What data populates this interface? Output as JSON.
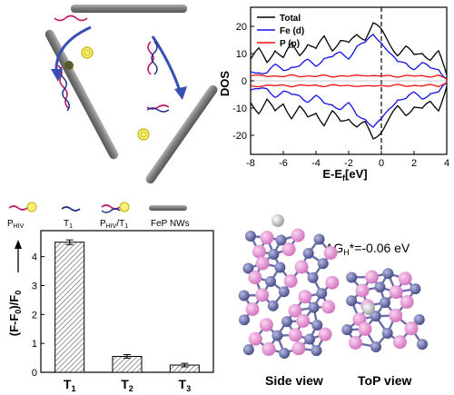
{
  "schematic": {
    "legend": {
      "probe": "P",
      "probe_sub": "HIV",
      "target": "T",
      "target_sub": "1",
      "hybrid": "P",
      "hybrid_sub": "HIV",
      "hybrid_slash": "/T",
      "hybrid_sub2": "1",
      "nanowire": "FeP NWs"
    }
  },
  "colors": {
    "total": "#000000",
    "fe_d": "#1010ee",
    "p_p": "#ee1010",
    "rod": "#8a8a8a",
    "fe_atom": "#7b7fb8",
    "p_atom": "#ec9ad8",
    "h_atom": "#e8e8e8"
  },
  "chart_data": [
    {
      "type": "line",
      "ylabel": "DOS",
      "xlabel": "E-E",
      "xlabel_sub": "f",
      "xlabel_unit": "[eV]",
      "xlim": [
        -8,
        4
      ],
      "ylim": [
        -27,
        27
      ],
      "xticks": [
        "-8",
        "-6",
        "-4",
        "-2",
        "0",
        "2",
        "4"
      ],
      "yticks": [
        "20",
        "10",
        "0",
        "-10",
        "-20"
      ],
      "legend_position": "top-left",
      "dashed_vertical_at": 0,
      "x": [
        -8,
        -7.5,
        -7,
        -6.5,
        -6,
        -5.5,
        -5,
        -4.5,
        -4,
        -3.5,
        -3,
        -2.5,
        -2,
        -1.5,
        -1,
        -0.5,
        0,
        0.5,
        1,
        1.5,
        2,
        2.5,
        3,
        3.5,
        4
      ],
      "series": [
        {
          "name": "Total",
          "color": "#000000",
          "values": [
            8,
            11,
            7,
            12,
            8,
            13,
            10,
            14,
            11,
            16,
            12,
            15,
            13,
            17,
            16,
            21,
            18,
            14,
            10,
            12,
            9,
            11,
            8,
            10,
            2
          ]
        },
        {
          "name": "Fe (d)",
          "color": "#1010ee",
          "values": [
            3,
            4,
            3,
            5,
            4,
            6,
            5,
            7,
            6,
            9,
            8,
            10,
            9,
            13,
            13,
            17,
            15,
            10,
            6,
            7,
            5,
            6,
            4,
            5,
            1
          ]
        },
        {
          "name": "P (p)",
          "color": "#ee1010",
          "values": [
            2,
            2,
            1.5,
            2,
            1.5,
            2,
            1.5,
            2,
            1.5,
            2,
            1.5,
            2,
            1.5,
            2,
            2,
            2,
            1.5,
            2,
            1.5,
            2,
            1.5,
            2,
            1.5,
            2,
            0.5
          ]
        }
      ]
    },
    {
      "type": "bar",
      "ylabel_parts": [
        "(F-F",
        "0",
        ")/F",
        "0"
      ],
      "categories": [
        {
          "main": "T",
          "sub": "1"
        },
        {
          "main": "T",
          "sub": "2"
        },
        {
          "main": "T",
          "sub": "3"
        }
      ],
      "values": [
        4.5,
        0.55,
        0.25
      ],
      "errors": [
        0.08,
        0.06,
        0.06
      ],
      "ylim": [
        0,
        4.9
      ],
      "yticks": [
        "0",
        "1",
        "2",
        "3",
        "4"
      ]
    }
  ],
  "structure": {
    "energy_label": "ΔG",
    "energy_sub": "H",
    "energy_value": "*=-0.06 eV",
    "side_view": "Side view",
    "top_view": "ToP view"
  }
}
